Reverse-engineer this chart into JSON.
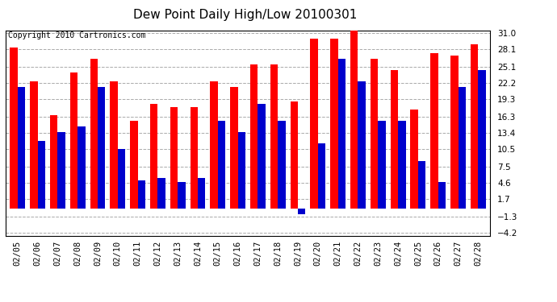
{
  "title": "Dew Point Daily High/Low 20100301",
  "copyright": "Copyright 2010 Cartronics.com",
  "dates": [
    "02/05",
    "02/06",
    "02/07",
    "02/08",
    "02/09",
    "02/10",
    "02/11",
    "02/12",
    "02/13",
    "02/14",
    "02/15",
    "02/16",
    "02/17",
    "02/18",
    "02/19",
    "02/20",
    "02/21",
    "02/22",
    "02/23",
    "02/24",
    "02/25",
    "02/26",
    "02/27",
    "02/28"
  ],
  "highs": [
    28.5,
    22.5,
    16.5,
    24.0,
    26.5,
    22.5,
    15.5,
    18.5,
    18.0,
    18.0,
    22.5,
    21.5,
    25.5,
    25.5,
    19.0,
    30.0,
    30.0,
    31.5,
    26.5,
    24.5,
    17.5,
    27.5,
    27.0,
    29.0
  ],
  "lows": [
    21.5,
    12.0,
    13.5,
    14.5,
    21.5,
    10.5,
    5.0,
    5.5,
    4.7,
    5.5,
    15.5,
    13.5,
    18.5,
    15.5,
    -1.0,
    11.5,
    26.5,
    22.5,
    15.5,
    15.5,
    8.5,
    4.7,
    21.5,
    24.5
  ],
  "yticks": [
    -4.2,
    -1.3,
    1.7,
    4.6,
    7.5,
    10.5,
    13.4,
    16.3,
    19.3,
    22.2,
    25.1,
    28.1,
    31.0
  ],
  "ylim_min": -4.7,
  "ylim_max": 31.5,
  "bar_width": 0.38,
  "high_color": "#ff0000",
  "low_color": "#0000cc",
  "bg_color": "#ffffff",
  "grid_color": "#aaaaaa",
  "title_fontsize": 11,
  "tick_fontsize": 7.5,
  "copyright_fontsize": 7
}
